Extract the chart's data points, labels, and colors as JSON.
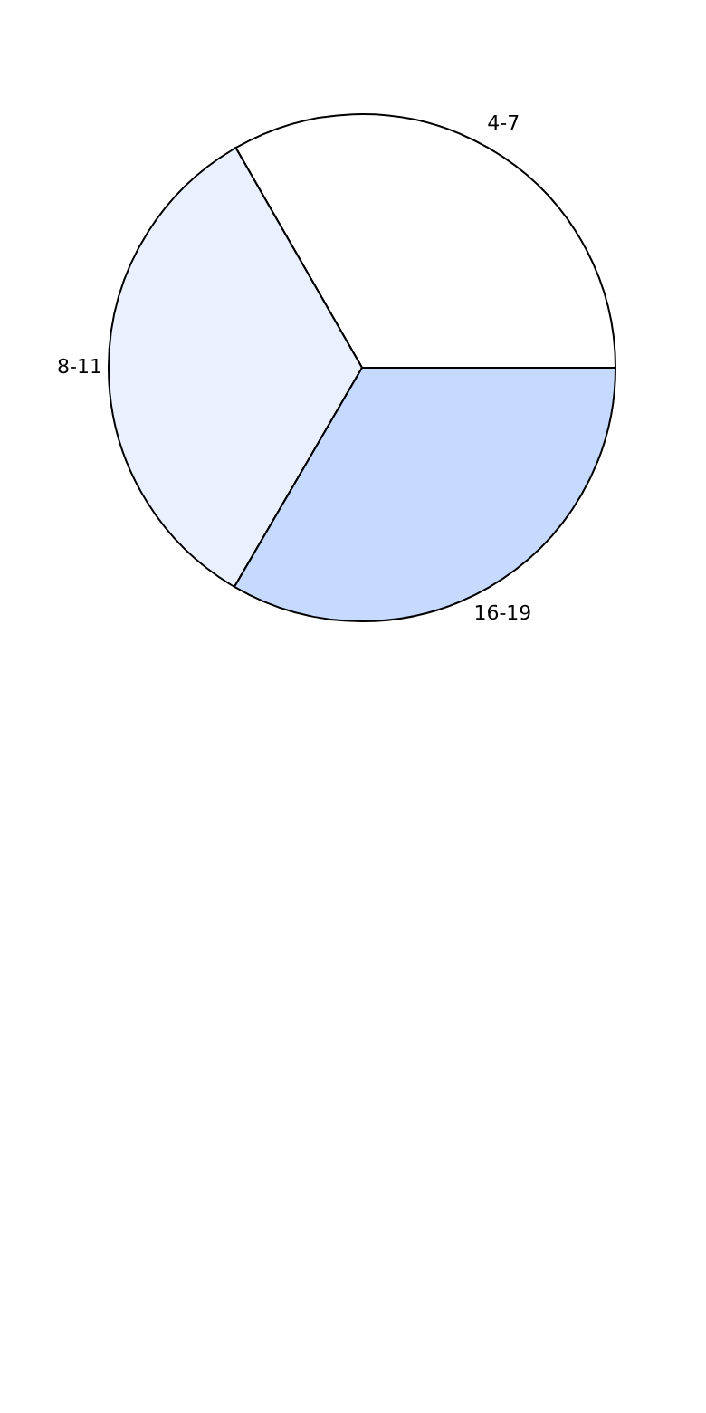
{
  "chart_data": {
    "type": "pie",
    "categories": [
      "4-7",
      "8-11",
      "16-19"
    ],
    "values": [
      33.3,
      33.3,
      33.4
    ],
    "colors": [
      "#ffffff",
      "#eaf0fe",
      "#c6d9fe"
    ],
    "legend": false
  }
}
